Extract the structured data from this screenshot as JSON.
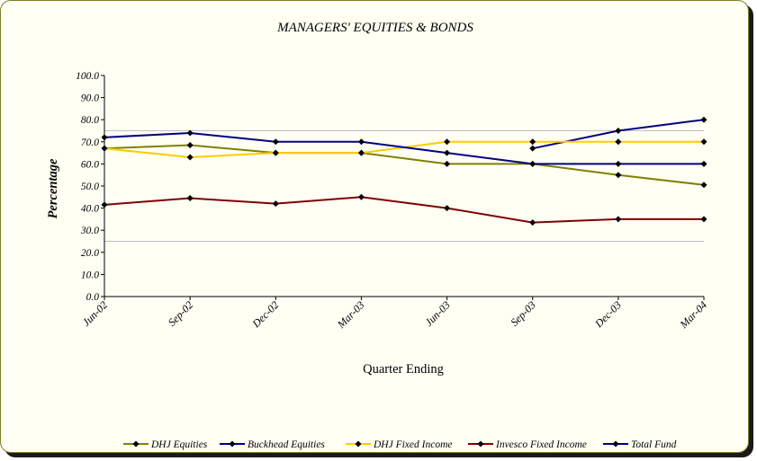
{
  "chart_data": {
    "type": "line",
    "title": "MANAGERS' EQUITIES & BONDS",
    "xlabel": "Quarter Ending",
    "ylabel": "Percentage",
    "ylim": [
      0,
      100
    ],
    "ytick_step": 10,
    "yticks": [
      "0.0",
      "10.0",
      "20.0",
      "30.0",
      "40.0",
      "50.0",
      "60.0",
      "70.0",
      "80.0",
      "90.0",
      "100.0"
    ],
    "categories": [
      "Jun-02",
      "Sep-02",
      "Dec-02",
      "Mar-03",
      "Jun-03",
      "Sep-03",
      "Dec-03",
      "Mar-04"
    ],
    "reference_lines": [
      25,
      75
    ],
    "legend_position": "bottom",
    "series": [
      {
        "name": "DHJ Equities",
        "color": "#808000",
        "values": [
          67,
          68.5,
          65,
          65,
          60,
          60,
          55,
          50.5
        ]
      },
      {
        "name": "Buckhead Equities",
        "color": "#000080",
        "values": [
          null,
          null,
          null,
          null,
          null,
          67,
          75,
          80
        ]
      },
      {
        "name": "DHJ Fixed Income",
        "color": "#ffcc00",
        "values": [
          67,
          63,
          65,
          65,
          70,
          70,
          70,
          70
        ]
      },
      {
        "name": "Invesco Fixed Income",
        "color": "#800000",
        "values": [
          41.5,
          44.5,
          42,
          45,
          40,
          33.5,
          35,
          35
        ]
      },
      {
        "name": "Total Fund",
        "color": "#000080",
        "values": [
          72,
          74,
          70,
          70,
          65,
          60,
          60,
          60
        ]
      }
    ]
  }
}
